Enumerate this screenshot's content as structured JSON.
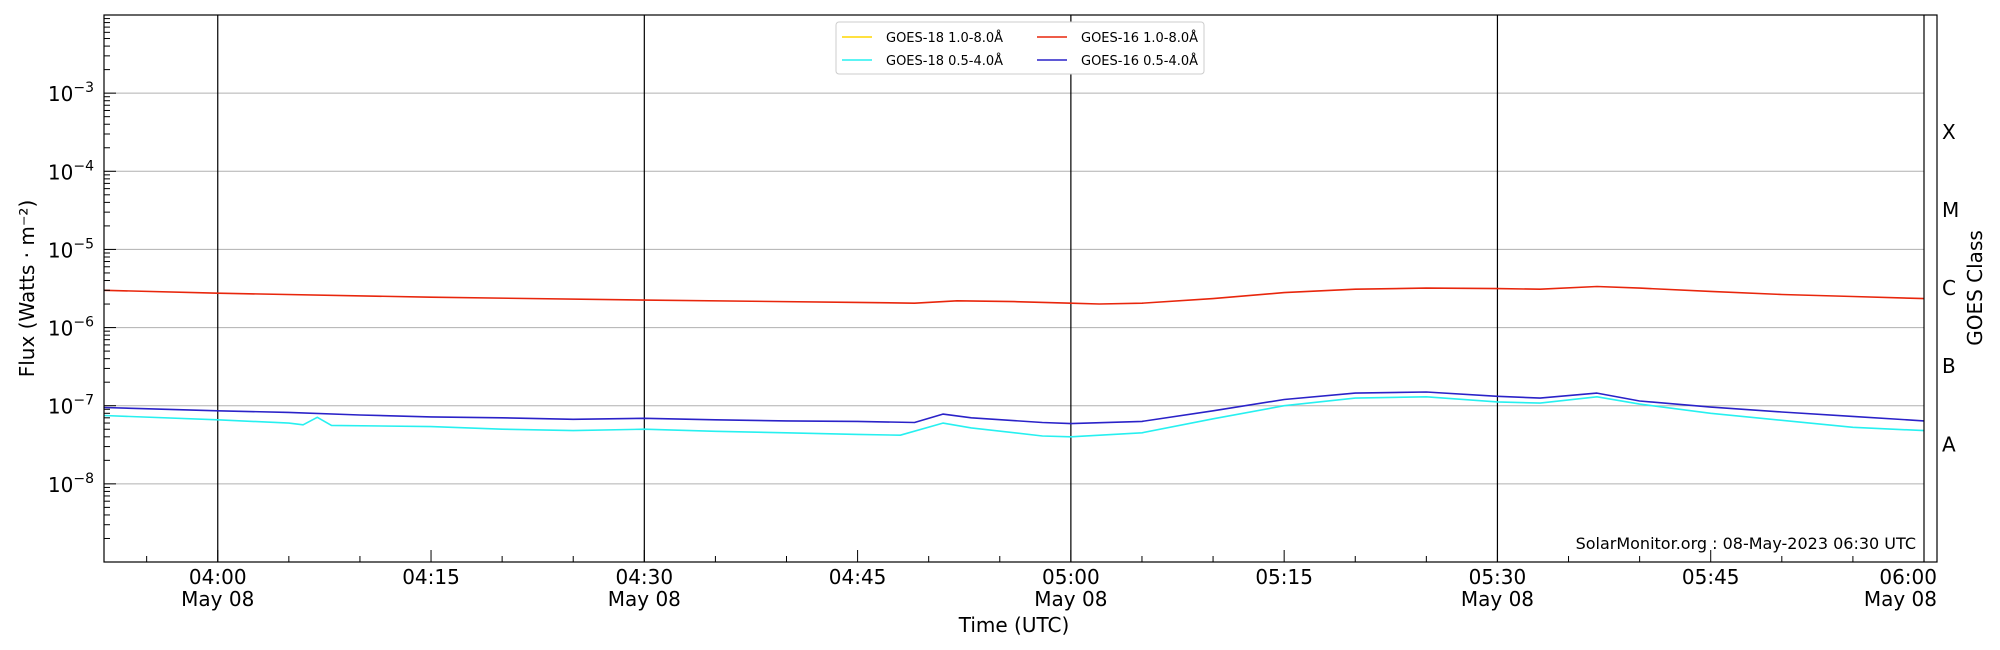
{
  "chart_data": {
    "type": "line",
    "xlabel": "Time (UTC)",
    "ylabel": "Flux (Watts · m⁻²)",
    "right_axis_label": "GOES Class",
    "x_range": [
      "03:52",
      "06:00"
    ],
    "x_ticks": [
      {
        "time": "04:00",
        "label": "04:00",
        "sublabel": "May 08"
      },
      {
        "time": "04:15",
        "label": "04:15",
        "sublabel": ""
      },
      {
        "time": "04:30",
        "label": "04:30",
        "sublabel": "May 08"
      },
      {
        "time": "04:45",
        "label": "04:45",
        "sublabel": ""
      },
      {
        "time": "05:00",
        "label": "05:00",
        "sublabel": "May 08"
      },
      {
        "time": "05:15",
        "label": "05:15",
        "sublabel": ""
      },
      {
        "time": "05:30",
        "label": "05:30",
        "sublabel": "May 08"
      },
      {
        "time": "05:45",
        "label": "05:45",
        "sublabel": ""
      },
      {
        "time": "06:00",
        "label": "06:00",
        "sublabel": "May 08"
      }
    ],
    "y_scale": "log",
    "y_range": [
      1e-09,
      0.01
    ],
    "y_ticks": [
      {
        "value": 1e-08,
        "base": "10",
        "exp": "−8"
      },
      {
        "value": 1e-07,
        "base": "10",
        "exp": "−7"
      },
      {
        "value": 1e-06,
        "base": "10",
        "exp": "−6"
      },
      {
        "value": 1e-05,
        "base": "10",
        "exp": "−5"
      },
      {
        "value": 0.0001,
        "base": "10",
        "exp": "−4"
      },
      {
        "value": 0.001,
        "base": "10",
        "exp": "−3"
      }
    ],
    "goes_classes": [
      {
        "label": "A",
        "value": 3.2e-08
      },
      {
        "label": "B",
        "value": 3.2e-07
      },
      {
        "label": "C",
        "value": 3.2e-06
      },
      {
        "label": "M",
        "value": 3.2e-05
      },
      {
        "label": "X",
        "value": 0.00032
      }
    ],
    "horizontal_grid": true,
    "vertical_lines_at": [
      "04:00",
      "04:30",
      "05:00",
      "05:30"
    ],
    "legend_position": "top-center",
    "legend": [
      {
        "name": "GOES-18 1.0-8.0Å",
        "color": "#ffd700"
      },
      {
        "name": "GOES-16 1.0-8.0Å",
        "color": "#e8260c"
      },
      {
        "name": "GOES-18 0.5-4.0Å",
        "color": "#27f0f0"
      },
      {
        "name": "GOES-16 0.5-4.0Å",
        "color": "#2a22c8"
      }
    ],
    "credit": "SolarMonitor.org : 08-May-2023 06:30 UTC",
    "series": [
      {
        "name": "GOES-16 1.0-8.0Å",
        "color": "#e8260c",
        "points": [
          [
            "03:52",
            3e-06
          ],
          [
            "04:00",
            2.75e-06
          ],
          [
            "04:15",
            2.45e-06
          ],
          [
            "04:30",
            2.25e-06
          ],
          [
            "04:45",
            2.1e-06
          ],
          [
            "04:49",
            2.05e-06
          ],
          [
            "04:52",
            2.2e-06
          ],
          [
            "04:56",
            2.15e-06
          ],
          [
            "05:00",
            2.05e-06
          ],
          [
            "05:02",
            2e-06
          ],
          [
            "05:05",
            2.05e-06
          ],
          [
            "05:10",
            2.35e-06
          ],
          [
            "05:15",
            2.8e-06
          ],
          [
            "05:20",
            3.1e-06
          ],
          [
            "05:25",
            3.2e-06
          ],
          [
            "05:30",
            3.15e-06
          ],
          [
            "05:33",
            3.1e-06
          ],
          [
            "05:37",
            3.35e-06
          ],
          [
            "05:40",
            3.2e-06
          ],
          [
            "05:45",
            2.9e-06
          ],
          [
            "05:50",
            2.65e-06
          ],
          [
            "05:55",
            2.5e-06
          ],
          [
            "06:00",
            2.35e-06
          ]
        ]
      },
      {
        "name": "GOES-16 0.5-4.0Å",
        "color": "#2a22c8",
        "points": [
          [
            "03:52",
            9.5e-08
          ],
          [
            "04:00",
            8.6e-08
          ],
          [
            "04:05",
            8.2e-08
          ],
          [
            "04:10",
            7.6e-08
          ],
          [
            "04:15",
            7.2e-08
          ],
          [
            "04:20",
            7e-08
          ],
          [
            "04:25",
            6.7e-08
          ],
          [
            "04:30",
            6.9e-08
          ],
          [
            "04:35",
            6.6e-08
          ],
          [
            "04:40",
            6.4e-08
          ],
          [
            "04:45",
            6.3e-08
          ],
          [
            "04:49",
            6.1e-08
          ],
          [
            "04:51",
            7.8e-08
          ],
          [
            "04:53",
            7e-08
          ],
          [
            "04:58",
            6.1e-08
          ],
          [
            "05:00",
            5.9e-08
          ],
          [
            "05:05",
            6.3e-08
          ],
          [
            "05:10",
            8.6e-08
          ],
          [
            "05:15",
            1.2e-07
          ],
          [
            "05:20",
            1.45e-07
          ],
          [
            "05:25",
            1.5e-07
          ],
          [
            "05:30",
            1.32e-07
          ],
          [
            "05:33",
            1.25e-07
          ],
          [
            "05:37",
            1.45e-07
          ],
          [
            "05:40",
            1.15e-07
          ],
          [
            "05:45",
            9.6e-08
          ],
          [
            "05:50",
            8.3e-08
          ],
          [
            "05:55",
            7.3e-08
          ],
          [
            "06:00",
            6.4e-08
          ]
        ]
      },
      {
        "name": "GOES-18 0.5-4.0Å",
        "color": "#27f0f0",
        "points": [
          [
            "03:52",
            7.5e-08
          ],
          [
            "04:00",
            6.6e-08
          ],
          [
            "04:05",
            6e-08
          ],
          [
            "04:06",
            5.7e-08
          ],
          [
            "04:07",
            7.1e-08
          ],
          [
            "04:08",
            5.6e-08
          ],
          [
            "04:15",
            5.4e-08
          ],
          [
            "04:20",
            5e-08
          ],
          [
            "04:25",
            4.8e-08
          ],
          [
            "04:30",
            5e-08
          ],
          [
            "04:35",
            4.7e-08
          ],
          [
            "04:40",
            4.5e-08
          ],
          [
            "04:45",
            4.3e-08
          ],
          [
            "04:48",
            4.2e-08
          ],
          [
            "04:51",
            6e-08
          ],
          [
            "04:53",
            5.2e-08
          ],
          [
            "04:58",
            4.1e-08
          ],
          [
            "05:00",
            4e-08
          ],
          [
            "05:05",
            4.5e-08
          ],
          [
            "05:10",
            6.8e-08
          ],
          [
            "05:15",
            1e-07
          ],
          [
            "05:20",
            1.25e-07
          ],
          [
            "05:25",
            1.3e-07
          ],
          [
            "05:30",
            1.12e-07
          ],
          [
            "05:33",
            1.08e-07
          ],
          [
            "05:37",
            1.3e-07
          ],
          [
            "05:40",
            1.05e-07
          ],
          [
            "05:45",
            8e-08
          ],
          [
            "05:50",
            6.5e-08
          ],
          [
            "05:55",
            5.3e-08
          ],
          [
            "06:00",
            4.8e-08
          ]
        ]
      }
    ]
  }
}
